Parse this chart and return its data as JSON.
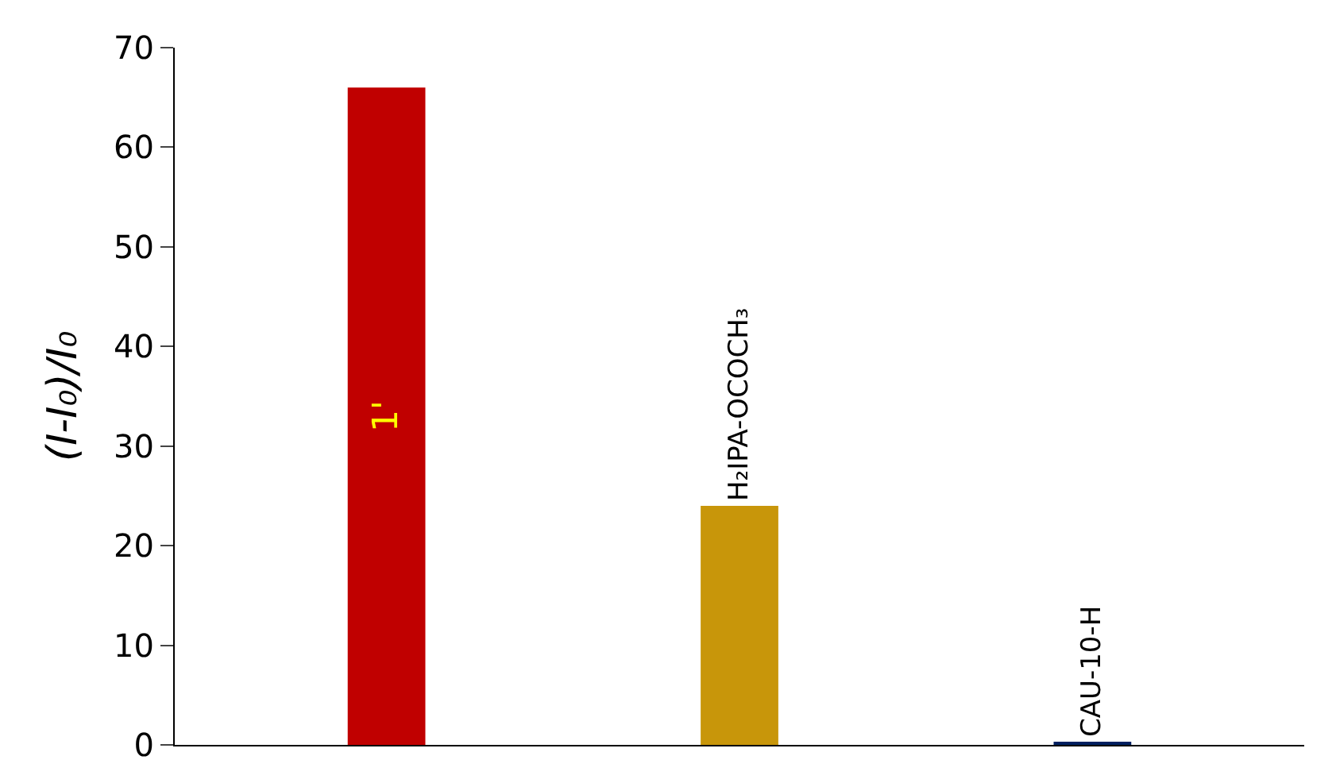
{
  "chart_data": {
    "type": "bar",
    "ylabel": "(I-I₀)/I₀",
    "categories": [
      "1'",
      "H₂IPA-OCOCH₃",
      "CAU-10-H"
    ],
    "values": [
      66,
      24,
      0.3
    ],
    "colors": [
      "#c00000",
      "#c8960a",
      "#002060"
    ],
    "ylim": [
      0,
      70
    ],
    "yticks": [
      0,
      10,
      20,
      30,
      40,
      50,
      60,
      70
    ],
    "legend": false,
    "tick_labels": "y"
  }
}
